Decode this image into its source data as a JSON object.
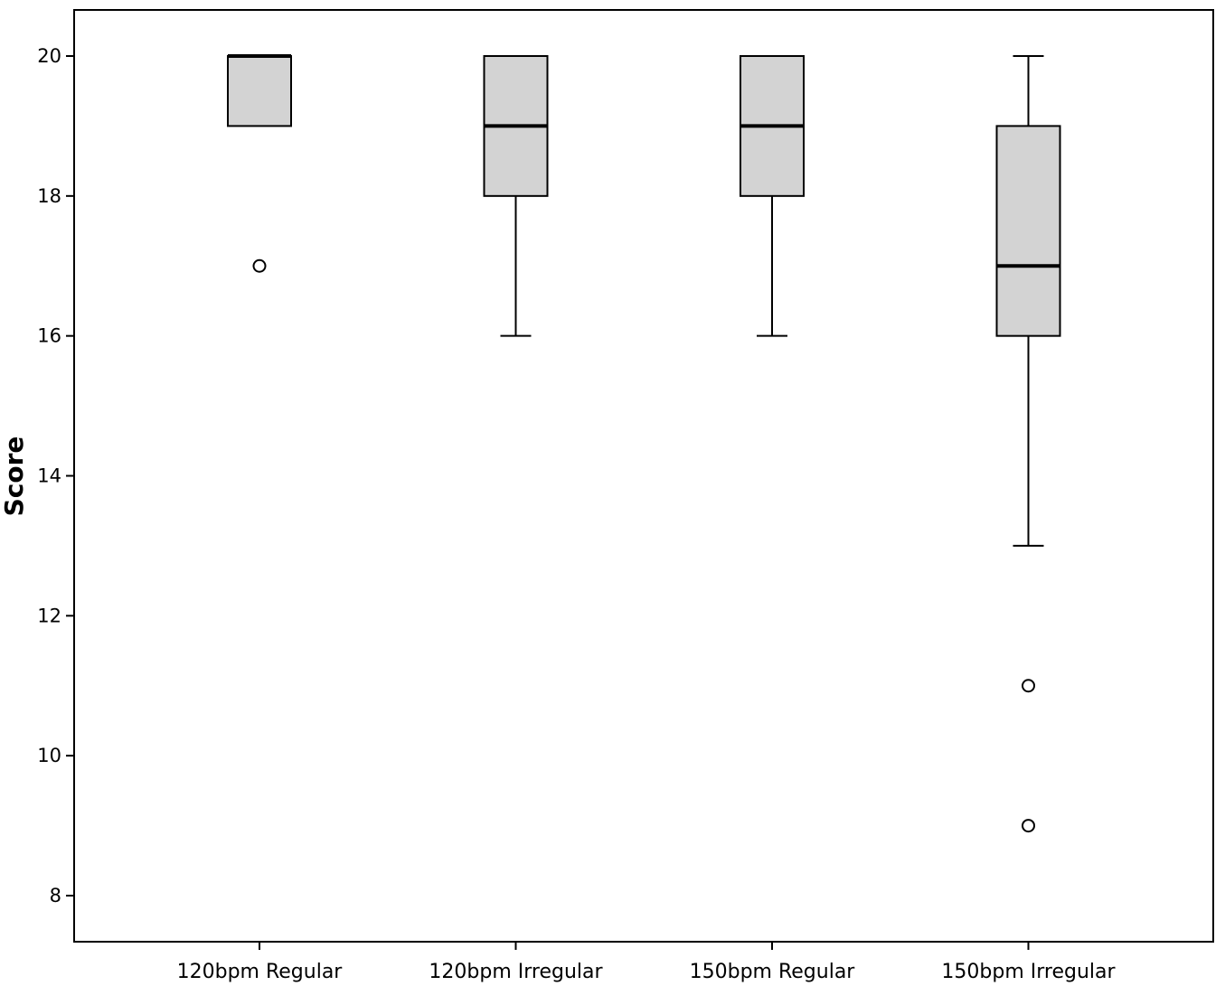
{
  "chart_data": {
    "type": "boxplot",
    "title": "",
    "xlabel": "",
    "ylabel": "Score",
    "ylim": [
      7.4,
      20.65
    ],
    "yticks": [
      8,
      10,
      12,
      14,
      16,
      18,
      20
    ],
    "grid": false,
    "legend": "none",
    "box_fill": "#d3d3d3",
    "line_color": "#000000",
    "categories": [
      "120bpm Regular",
      "120bpm Irregular",
      "150bpm Regular",
      "150bpm Irregular"
    ],
    "boxes": [
      {
        "category": "120bpm Regular",
        "whisker_low": 19,
        "q1": 19,
        "median": 20,
        "q3": 20,
        "whisker_high": 20,
        "outliers": [
          17
        ]
      },
      {
        "category": "120bpm Irregular",
        "whisker_low": 16,
        "q1": 18,
        "median": 19,
        "q3": 20,
        "whisker_high": 20,
        "outliers": []
      },
      {
        "category": "150bpm Regular",
        "whisker_low": 16,
        "q1": 18,
        "median": 19,
        "q3": 20,
        "whisker_high": 20,
        "outliers": []
      },
      {
        "category": "150bpm Irregular",
        "whisker_low": 13,
        "q1": 16,
        "median": 17,
        "q3": 19,
        "whisker_high": 20,
        "outliers": [
          11,
          9
        ]
      }
    ]
  }
}
